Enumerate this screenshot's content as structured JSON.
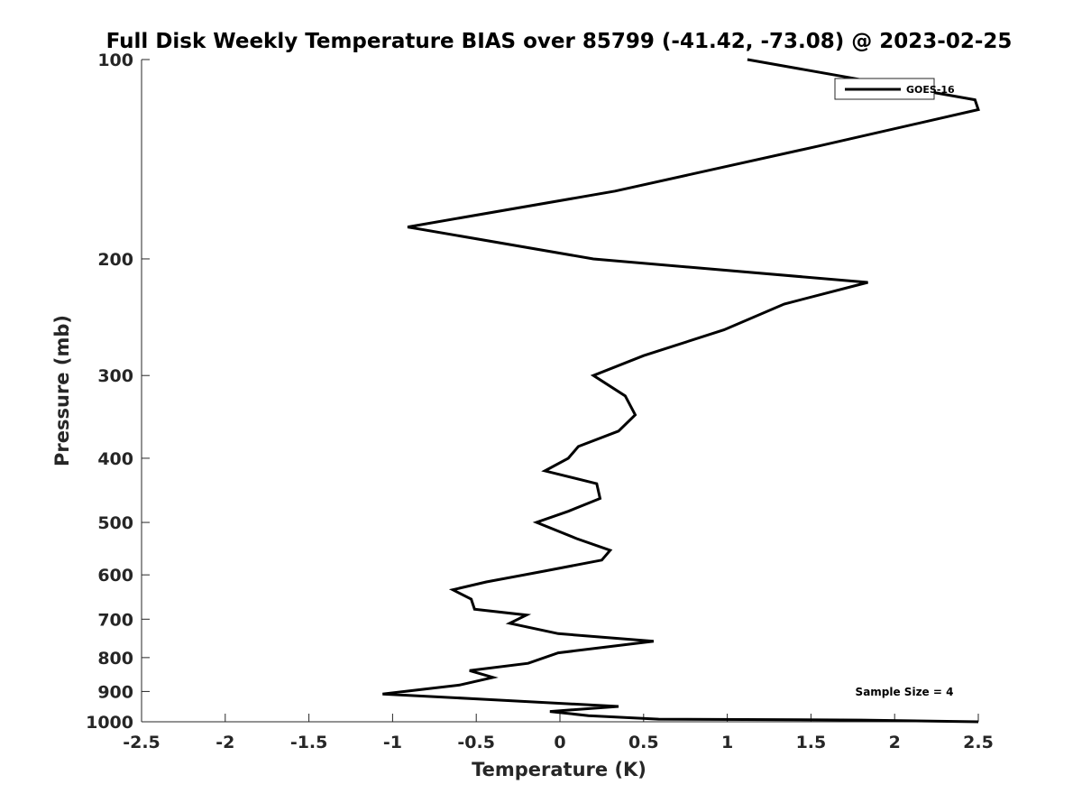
{
  "chart_data": {
    "type": "line",
    "title": "Full Disk Weekly Temperature BIAS over 85799 (-41.42, -73.08) @ 2023-02-25",
    "xlabel": "Temperature (K)",
    "ylabel": "Pressure (mb)",
    "xlim": [
      -2.5,
      2.5
    ],
    "ylim": [
      100,
      1000
    ],
    "y_scale": "log",
    "y_reversed": true,
    "x_ticks": [
      -2.5,
      -2,
      -1.5,
      -1,
      -0.5,
      0,
      0.5,
      1,
      1.5,
      2,
      2.5
    ],
    "x_tick_labels": [
      "-2.5",
      "-2",
      "-1.5",
      "-1",
      "-0.5",
      "0",
      "0.5",
      "1",
      "1.5",
      "2",
      "2.5"
    ],
    "y_ticks": [
      100,
      200,
      300,
      400,
      500,
      600,
      700,
      800,
      900,
      1000
    ],
    "y_tick_labels": [
      "100",
      "200",
      "300",
      "400",
      "500",
      "600",
      "700",
      "800",
      "900",
      "1000"
    ],
    "grid": false,
    "legend_position": "top-right",
    "annotation": "Sample Size = 4",
    "series": [
      {
        "name": "GOES-16",
        "color": "#000000",
        "points": [
          [
            1.12,
            100
          ],
          [
            2.48,
            115
          ],
          [
            2.5,
            119
          ],
          [
            1.55,
            135
          ],
          [
            0.33,
            158
          ],
          [
            -0.91,
            179
          ],
          [
            0.2,
            200
          ],
          [
            1.84,
            217
          ],
          [
            1.34,
            234
          ],
          [
            0.98,
            256
          ],
          [
            0.5,
            280
          ],
          [
            0.2,
            300
          ],
          [
            0.39,
            322
          ],
          [
            0.45,
            344
          ],
          [
            0.35,
            364
          ],
          [
            0.11,
            384
          ],
          [
            0.05,
            400
          ],
          [
            -0.09,
            418
          ],
          [
            0.22,
            437
          ],
          [
            0.24,
            460
          ],
          [
            0.05,
            481
          ],
          [
            -0.14,
            500
          ],
          [
            0.1,
            529
          ],
          [
            0.3,
            551
          ],
          [
            0.25,
            570
          ],
          [
            -0.09,
            592
          ],
          [
            -0.44,
            615
          ],
          [
            -0.64,
            632
          ],
          [
            -0.53,
            653
          ],
          [
            -0.51,
            676
          ],
          [
            -0.2,
            690
          ],
          [
            -0.3,
            710
          ],
          [
            -0.01,
            736
          ],
          [
            0.56,
            756
          ],
          [
            -0.01,
            787
          ],
          [
            -0.19,
            816
          ],
          [
            -0.54,
            837
          ],
          [
            -0.4,
            857
          ],
          [
            -0.6,
            880
          ],
          [
            -1.06,
            908
          ],
          [
            -0.45,
            925
          ],
          [
            0.35,
            948
          ],
          [
            -0.06,
            965
          ],
          [
            0.17,
            979
          ],
          [
            0.59,
            991
          ],
          [
            1.8,
            994
          ],
          [
            2.5,
            1000
          ]
        ]
      }
    ]
  }
}
